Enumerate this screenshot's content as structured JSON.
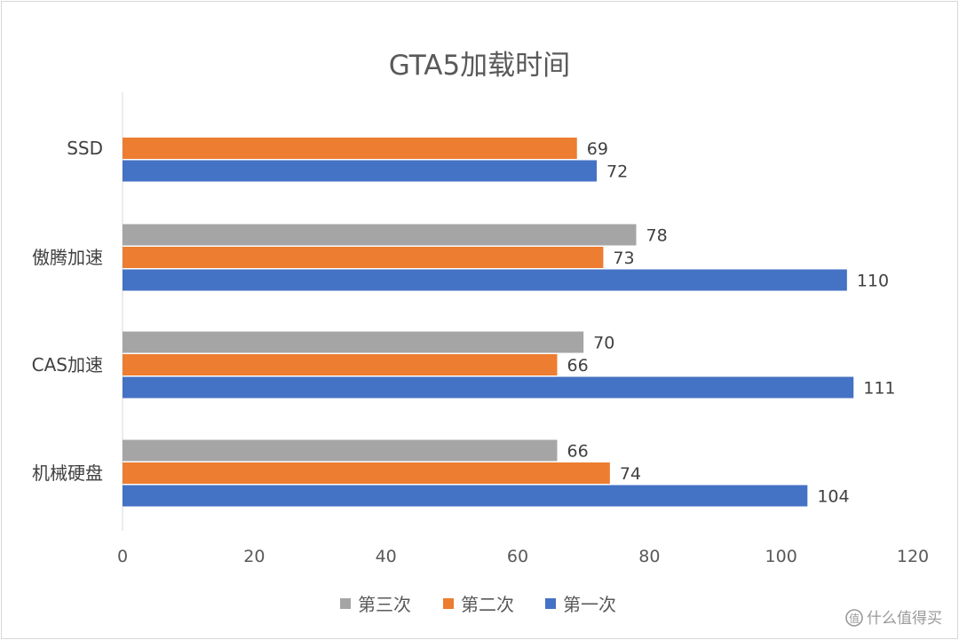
{
  "chart_data": {
    "type": "bar",
    "orientation": "horizontal",
    "title": "GTA5加载时间",
    "xlabel": "",
    "ylabel": "",
    "categories": [
      "SSD",
      "傲腾加速",
      "CAS加速",
      "机械硬盘"
    ],
    "series": [
      {
        "name": "第一次",
        "color": "#4472c4",
        "values": [
          72,
          110,
          111,
          104
        ]
      },
      {
        "name": "第二次",
        "color": "#ed7d31",
        "values": [
          69,
          73,
          66,
          74
        ]
      },
      {
        "name": "第三次",
        "color": "#a5a5a5",
        "values": [
          null,
          78,
          70,
          66
        ]
      }
    ],
    "xlim": [
      0,
      120
    ],
    "xticks": [
      0,
      20,
      40,
      60,
      80,
      100,
      120
    ],
    "grid": false,
    "legend_position": "bottom",
    "legend_order": [
      "第三次",
      "第二次",
      "第一次"
    ]
  },
  "watermark": {
    "text": "什么值得买",
    "icon": "smzdm-logo-icon"
  }
}
